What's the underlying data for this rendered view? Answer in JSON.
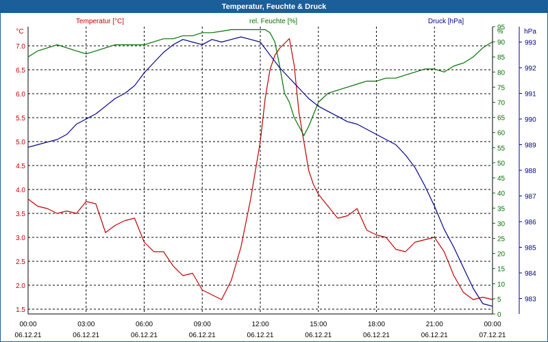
{
  "window": {
    "title": "Temperatur, Feuchte & Druck"
  },
  "chart_data": {
    "type": "line",
    "title": "Temperatur, Feuchte & Druck",
    "grid": true,
    "x": {
      "range": [
        "06.12.21 00:00",
        "07.12.21 00:00"
      ],
      "ticks": [
        {
          "time": "00:00",
          "date": "06.12.21"
        },
        {
          "time": "03:00",
          "date": "06.12.21"
        },
        {
          "time": "06:00",
          "date": "06.12.21"
        },
        {
          "time": "09:00",
          "date": "06.12.21"
        },
        {
          "time": "12:00",
          "date": "06.12.21"
        },
        {
          "time": "15:00",
          "date": "06.12.21"
        },
        {
          "time": "18:00",
          "date": "06.12.21"
        },
        {
          "time": "21:00",
          "date": "06.12.21"
        },
        {
          "time": "00:00",
          "date": "07.12.21"
        }
      ]
    },
    "axes": [
      {
        "id": "temp",
        "label": "Temperatur [°C]",
        "unit": "°C",
        "side": "left",
        "color": "#c00000",
        "range": [
          1.4,
          7.4
        ],
        "ticks": [
          "1.5",
          "2.0",
          "2.5",
          "3.0",
          "3.5",
          "4.0",
          "4.5",
          "5.0",
          "5.5",
          "6.0",
          "6.5",
          "7.0"
        ]
      },
      {
        "id": "hum",
        "label": "rel. Feuchte [%]",
        "unit": "%",
        "side": "right-inner",
        "color": "#007000",
        "range": [
          0,
          95
        ],
        "ticks": [
          "0",
          "5",
          "10",
          "15",
          "20",
          "25",
          "30",
          "35",
          "40",
          "45",
          "50",
          "55",
          "60",
          "65",
          "70",
          "75",
          "80",
          "85",
          "90",
          "95"
        ]
      },
      {
        "id": "pres",
        "label": "Druck [hPa]",
        "unit": "hPa",
        "side": "right-outer",
        "color": "#00008b",
        "range": [
          982.4,
          993.6
        ],
        "ticks": [
          "983",
          "984",
          "985",
          "986",
          "987",
          "988",
          "989",
          "990",
          "991",
          "992",
          "993"
        ]
      }
    ],
    "series": [
      {
        "name": "Temperatur",
        "axis": "temp",
        "color": "#c00000",
        "x": [
          0,
          0.5,
          1,
          1.5,
          2,
          2.5,
          3,
          3.5,
          4,
          4.5,
          5,
          5.5,
          6,
          6.5,
          7,
          7.5,
          8,
          8.5,
          9,
          9.5,
          10,
          10.5,
          11,
          11.5,
          12,
          12.25,
          12.5,
          12.75,
          13,
          13.25,
          13.5,
          13.75,
          14,
          14.25,
          14.5,
          14.75,
          15,
          15.5,
          16,
          16.5,
          17,
          17.5,
          18,
          18.5,
          19,
          19.5,
          20,
          20.5,
          21,
          21.5,
          22,
          22.5,
          23,
          23.5,
          24
        ],
        "y": [
          3.8,
          3.65,
          3.6,
          3.5,
          3.55,
          3.5,
          3.75,
          3.7,
          3.1,
          3.25,
          3.35,
          3.4,
          2.9,
          2.7,
          2.7,
          2.4,
          2.2,
          2.25,
          1.9,
          1.8,
          1.7,
          2.1,
          2.8,
          3.8,
          5.0,
          5.9,
          6.5,
          6.8,
          6.95,
          7.05,
          7.15,
          6.6,
          5.6,
          5.0,
          4.4,
          4.1,
          3.9,
          3.65,
          3.4,
          3.45,
          3.6,
          3.15,
          3.05,
          3.0,
          2.75,
          2.7,
          2.9,
          2.95,
          3.0,
          2.7,
          2.2,
          1.85,
          1.7,
          1.75,
          1.7
        ]
      },
      {
        "name": "rel. Feuchte",
        "axis": "hum",
        "color": "#007000",
        "x": [
          0,
          0.5,
          1,
          1.5,
          2,
          2.5,
          3,
          3.5,
          4,
          4.5,
          5,
          5.5,
          6,
          6.5,
          7,
          7.5,
          8,
          8.5,
          9,
          9.5,
          10,
          10.5,
          11,
          11.5,
          12,
          12.25,
          12.5,
          12.75,
          13,
          13.25,
          13.5,
          13.75,
          14,
          14.25,
          14.5,
          15,
          15.5,
          16,
          16.5,
          17,
          17.5,
          18,
          18.5,
          19,
          19.5,
          20,
          20.5,
          21,
          21.5,
          22,
          22.5,
          23,
          23.5,
          24
        ],
        "y": [
          85,
          87,
          88,
          89,
          88,
          87,
          86,
          87,
          88,
          89,
          89,
          89,
          89,
          90,
          91,
          91,
          92,
          92,
          93,
          93,
          93.5,
          94,
          94,
          94,
          94,
          94,
          93,
          90,
          82,
          73,
          70,
          65,
          62,
          59,
          62,
          70,
          73,
          74,
          75,
          76,
          77,
          77,
          78,
          78,
          79,
          80,
          81,
          81,
          80,
          82,
          83,
          85,
          88,
          90
        ]
      },
      {
        "name": "Druck",
        "axis": "pres",
        "color": "#00008b",
        "x": [
          0,
          0.5,
          1,
          1.5,
          2,
          2.5,
          3,
          3.5,
          4,
          4.5,
          5,
          5.5,
          6,
          6.5,
          7,
          7.5,
          8,
          8.5,
          9,
          9.5,
          10,
          10.5,
          11,
          11.5,
          12,
          12.5,
          13,
          13.5,
          14,
          14.5,
          15,
          15.5,
          16,
          16.5,
          17,
          17.5,
          18,
          18.5,
          19,
          19.5,
          20,
          20.5,
          21,
          21.5,
          22,
          22.5,
          23,
          23.5,
          24
        ],
        "y": [
          988.9,
          989.0,
          989.1,
          989.2,
          989.4,
          989.8,
          990.0,
          990.2,
          990.5,
          990.8,
          991.0,
          991.3,
          991.8,
          992.2,
          992.6,
          992.9,
          993.1,
          993.0,
          992.9,
          993.1,
          993.0,
          993.1,
          993.2,
          993.1,
          993.0,
          992.5,
          992.0,
          991.6,
          991.2,
          990.8,
          990.5,
          990.3,
          990.1,
          989.9,
          989.8,
          989.6,
          989.4,
          989.2,
          989.0,
          988.6,
          988.1,
          987.4,
          986.6,
          985.7,
          985.0,
          984.2,
          983.4,
          982.8,
          982.7
        ]
      }
    ]
  }
}
